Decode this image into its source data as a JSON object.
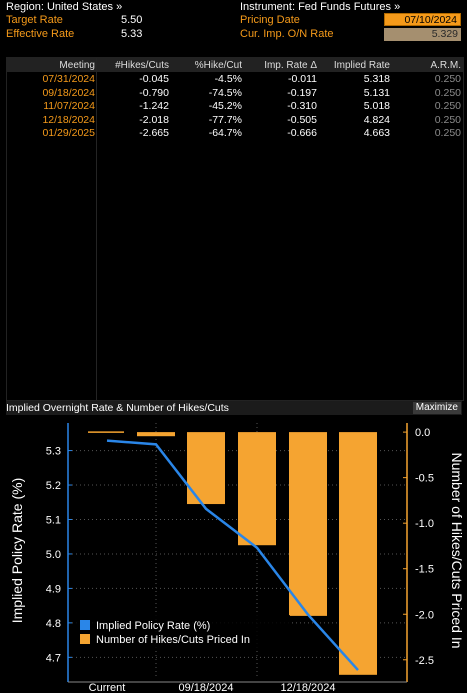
{
  "header": {
    "region_label": "Region: United States »",
    "instrument_label": "Instrument: Fed Funds Futures »",
    "target_rate_label": "Target Rate",
    "target_rate_value": "5.50",
    "effective_rate_label": "Effective Rate",
    "effective_rate_value": "5.33",
    "pricing_date_label": "Pricing Date",
    "pricing_date_value": "07/10/2024",
    "cur_imp_label": "Cur. Imp. O/N Rate",
    "cur_imp_value": "5.329"
  },
  "table": {
    "columns": [
      "Meeting",
      "#Hikes/Cuts",
      "%Hike/Cut",
      "Imp. Rate Δ",
      "Implied Rate",
      "A.R.M."
    ],
    "rows": [
      {
        "meeting": "07/31/2024",
        "hikes": "-0.045",
        "pct": "-4.5%",
        "delta": "-0.011",
        "implied": "5.318",
        "arm": "0.250"
      },
      {
        "meeting": "09/18/2024",
        "hikes": "-0.790",
        "pct": "-74.5%",
        "delta": "-0.197",
        "implied": "5.131",
        "arm": "0.250"
      },
      {
        "meeting": "11/07/2024",
        "hikes": "-1.242",
        "pct": "-45.2%",
        "delta": "-0.310",
        "implied": "5.018",
        "arm": "0.250"
      },
      {
        "meeting": "12/18/2024",
        "hikes": "-2.018",
        "pct": "-77.7%",
        "delta": "-0.505",
        "implied": "4.824",
        "arm": "0.250"
      },
      {
        "meeting": "01/29/2025",
        "hikes": "-2.665",
        "pct": "-64.7%",
        "delta": "-0.666",
        "implied": "4.663",
        "arm": "0.250"
      }
    ]
  },
  "chart_panel": {
    "title": "Implied Overnight Rate & Number of Hikes/Cuts",
    "maximize_label": "Maximize"
  },
  "chart_data": {
    "type": "bar",
    "categories": [
      "Current",
      "07/31/2024",
      "09/18/2024",
      "11/07/2024",
      "12/18/2024",
      "01/29/2025"
    ],
    "x_tick_labels": [
      "Current",
      "09/18/2024",
      "12/18/2024"
    ],
    "series": [
      {
        "name": "Implied Policy Rate (%)",
        "type": "line",
        "axis": "left",
        "color": "#2a86e8",
        "values": [
          5.329,
          5.318,
          5.131,
          5.018,
          4.824,
          4.663
        ]
      },
      {
        "name": "Number of Hikes/Cuts Priced In",
        "type": "bar",
        "axis": "right",
        "color": "#f5a431",
        "values": [
          null,
          -0.045,
          -0.79,
          -1.242,
          -2.018,
          -2.665
        ]
      }
    ],
    "ylabel": "Implied Policy Rate (%)",
    "y2label": "Number of Hikes/Cuts Priced In",
    "ylim": [
      4.64,
      5.38
    ],
    "yticks": [
      4.7,
      4.8,
      4.9,
      5.0,
      5.1,
      5.2,
      5.3
    ],
    "y2lim": [
      -2.7,
      0.1
    ],
    "y2ticks": [
      0.0,
      -0.5,
      -1.0,
      -1.5,
      -2.0,
      -2.5
    ],
    "grid": true,
    "legend_position": "bottom-left"
  }
}
